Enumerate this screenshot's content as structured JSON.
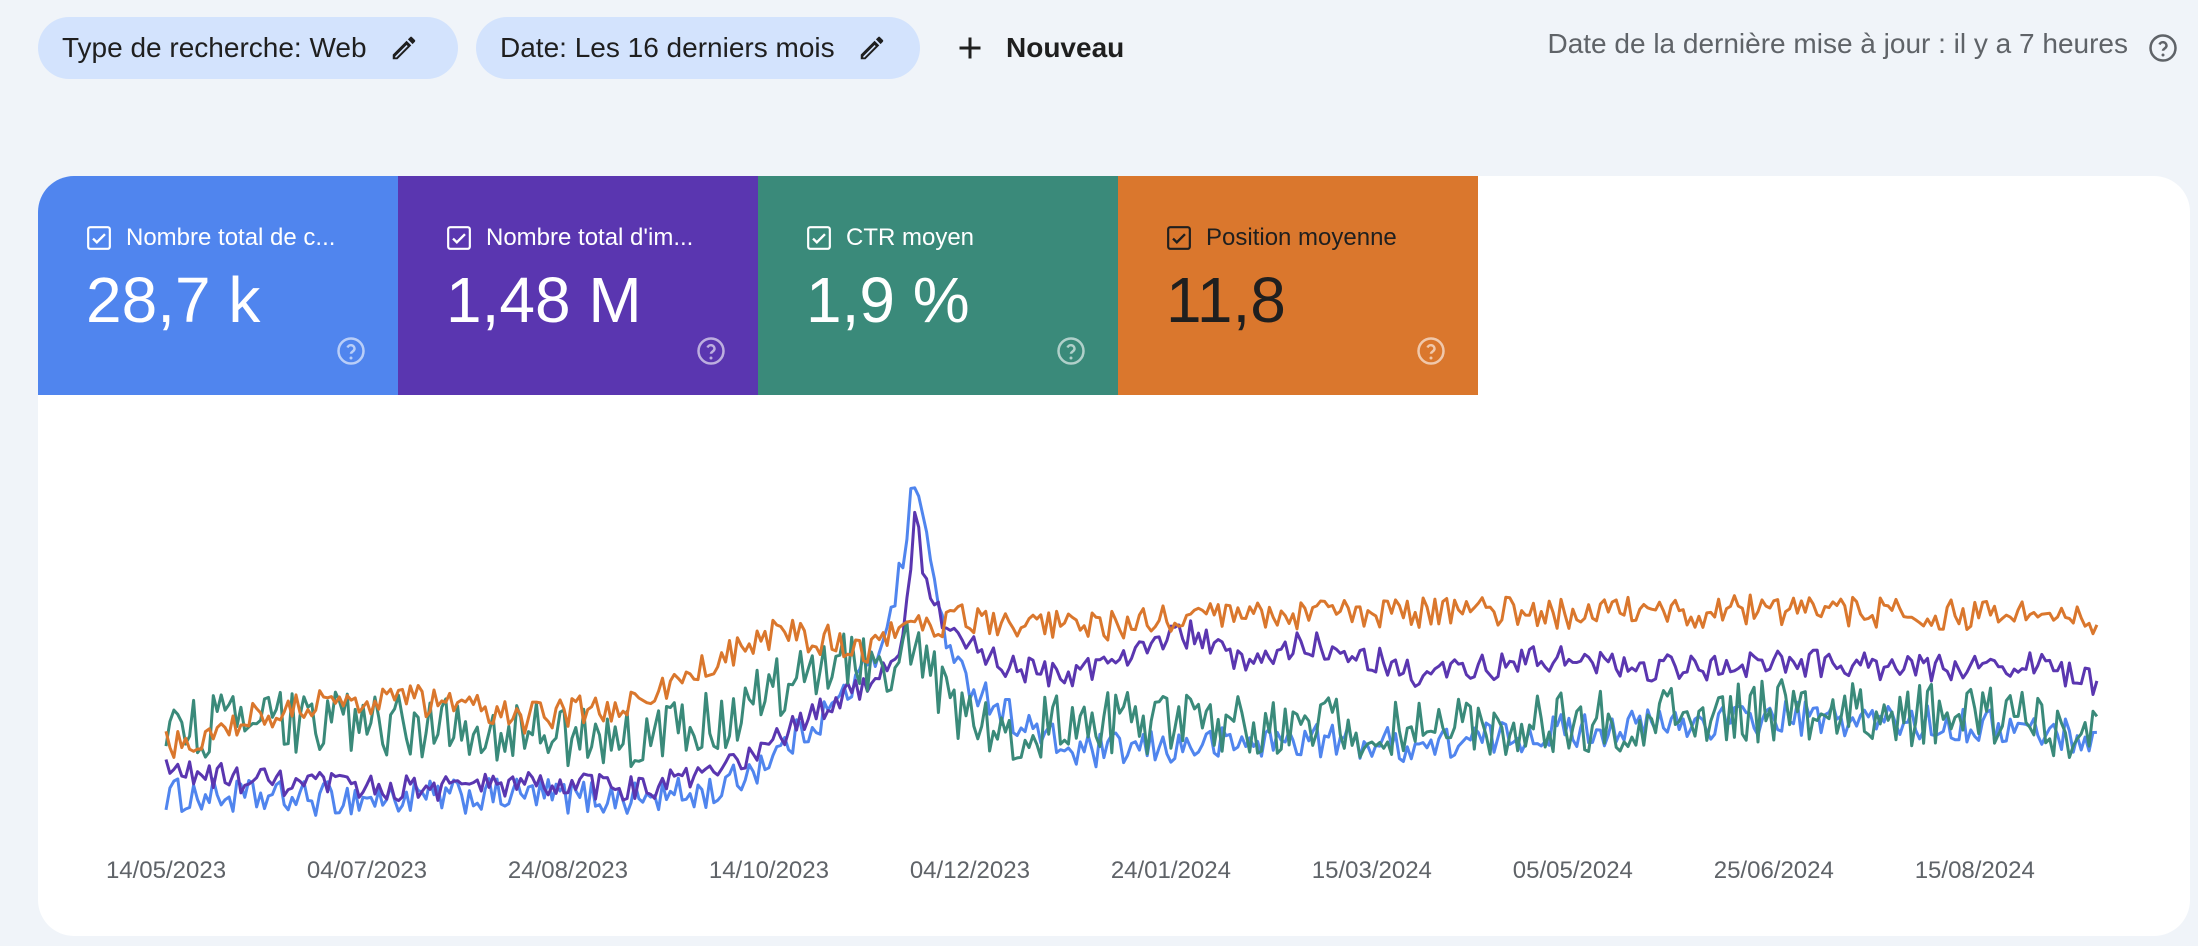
{
  "filters": {
    "search_type_label": "Type de recherche: Web",
    "date_label": "Date: Les 16 derniers mois",
    "new_label": "Nouveau",
    "edit_icon": "pencil-icon",
    "new_icon": "plus-icon"
  },
  "last_update": "Date de la dernière mise à jour : il y a 7 heures",
  "help_icon": "help-circle-icon",
  "metrics": [
    {
      "label": "Nombre total de c...",
      "value": "28,7 k",
      "color": "#5085ee",
      "checked": true
    },
    {
      "label": "Nombre total d'im...",
      "value": "1,48 M",
      "color": "#5a36b0",
      "checked": true
    },
    {
      "label": "CTR moyen",
      "value": "1,9 %",
      "color": "#3a8a7a",
      "checked": true
    },
    {
      "label": "Position moyenne",
      "value": "11,8",
      "color": "#da772d",
      "checked": true
    }
  ],
  "chart_data": {
    "type": "line",
    "x_start": "2023-05-14",
    "x_end": "2024-09-14",
    "x_ticks": [
      "14/05/2023",
      "04/07/2023",
      "24/08/2023",
      "14/10/2023",
      "04/12/2023",
      "24/01/2024",
      "15/03/2024",
      "05/05/2024",
      "25/06/2024",
      "15/08/2024"
    ],
    "y_axis_visible": false,
    "grid": false,
    "legend": "metric-cards-top",
    "series": [
      {
        "name": "Nombre total de c...",
        "color": "#5085ee",
        "points": [
          [
            0,
            0.06
          ],
          [
            30,
            0.05
          ],
          [
            60,
            0.05
          ],
          [
            90,
            0.06
          ],
          [
            120,
            0.05
          ],
          [
            140,
            0.07
          ],
          [
            155,
            0.18
          ],
          [
            170,
            0.32
          ],
          [
            180,
            0.45
          ],
          [
            187,
            0.72
          ],
          [
            190,
            0.98
          ],
          [
            194,
            0.72
          ],
          [
            200,
            0.42
          ],
          [
            215,
            0.28
          ],
          [
            230,
            0.18
          ],
          [
            260,
            0.2
          ],
          [
            290,
            0.22
          ],
          [
            320,
            0.2
          ],
          [
            350,
            0.24
          ],
          [
            380,
            0.26
          ],
          [
            410,
            0.28
          ],
          [
            440,
            0.27
          ],
          [
            470,
            0.25
          ],
          [
            490,
            0.22
          ]
        ]
      },
      {
        "name": "Nombre total d'im...",
        "color": "#5a36b0",
        "points": [
          [
            0,
            0.13
          ],
          [
            30,
            0.09
          ],
          [
            60,
            0.08
          ],
          [
            90,
            0.09
          ],
          [
            120,
            0.08
          ],
          [
            140,
            0.12
          ],
          [
            155,
            0.22
          ],
          [
            170,
            0.33
          ],
          [
            180,
            0.4
          ],
          [
            187,
            0.5
          ],
          [
            190,
            0.85
          ],
          [
            194,
            0.6
          ],
          [
            200,
            0.52
          ],
          [
            215,
            0.42
          ],
          [
            230,
            0.4
          ],
          [
            250,
            0.5
          ],
          [
            260,
            0.52
          ],
          [
            275,
            0.42
          ],
          [
            290,
            0.5
          ],
          [
            320,
            0.4
          ],
          [
            350,
            0.45
          ],
          [
            380,
            0.42
          ],
          [
            410,
            0.44
          ],
          [
            440,
            0.42
          ],
          [
            470,
            0.44
          ],
          [
            490,
            0.38
          ]
        ]
      },
      {
        "name": "CTR moyen",
        "color": "#3a8a7a",
        "points": [
          [
            0,
            0.25
          ],
          [
            30,
            0.27
          ],
          [
            60,
            0.26
          ],
          [
            90,
            0.24
          ],
          [
            120,
            0.22
          ],
          [
            140,
            0.27
          ],
          [
            155,
            0.37
          ],
          [
            170,
            0.46
          ],
          [
            180,
            0.44
          ],
          [
            187,
            0.45
          ],
          [
            190,
            0.5
          ],
          [
            194,
            0.4
          ],
          [
            200,
            0.3
          ],
          [
            215,
            0.25
          ],
          [
            230,
            0.26
          ],
          [
            260,
            0.27
          ],
          [
            290,
            0.26
          ],
          [
            320,
            0.24
          ],
          [
            350,
            0.26
          ],
          [
            380,
            0.28
          ],
          [
            410,
            0.3
          ],
          [
            440,
            0.29
          ],
          [
            470,
            0.28
          ],
          [
            490,
            0.24
          ]
        ]
      },
      {
        "name": "Position moyenne",
        "color": "#da772d",
        "points": [
          [
            0,
            0.2
          ],
          [
            30,
            0.31
          ],
          [
            60,
            0.34
          ],
          [
            90,
            0.28
          ],
          [
            120,
            0.32
          ],
          [
            140,
            0.45
          ],
          [
            155,
            0.52
          ],
          [
            170,
            0.5
          ],
          [
            180,
            0.48
          ],
          [
            187,
            0.57
          ],
          [
            194,
            0.55
          ],
          [
            200,
            0.56
          ],
          [
            215,
            0.56
          ],
          [
            230,
            0.54
          ],
          [
            260,
            0.56
          ],
          [
            290,
            0.58
          ],
          [
            320,
            0.58
          ],
          [
            350,
            0.58
          ],
          [
            380,
            0.58
          ],
          [
            410,
            0.59
          ],
          [
            440,
            0.58
          ],
          [
            470,
            0.57
          ],
          [
            490,
            0.55
          ]
        ]
      }
    ]
  }
}
